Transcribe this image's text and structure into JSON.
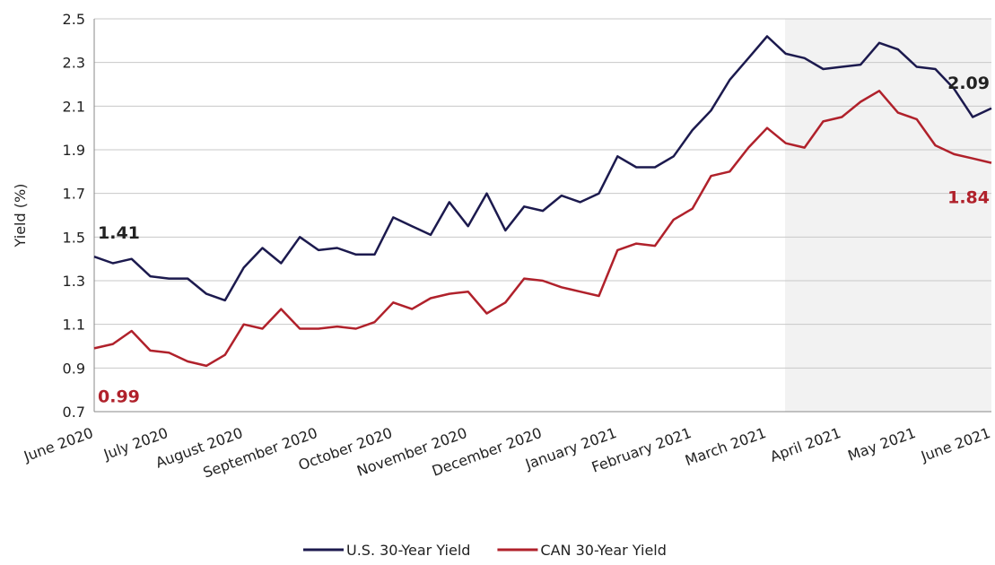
{
  "chart_data": {
    "type": "line",
    "y_label": "Yield (%)",
    "categories": [
      "June 2020",
      null,
      null,
      null,
      "July 2020",
      null,
      null,
      null,
      "August 2020",
      null,
      null,
      null,
      "September 2020",
      null,
      null,
      null,
      "October 2020",
      null,
      null,
      null,
      "November 2020",
      null,
      null,
      null,
      "December 2020",
      null,
      null,
      null,
      "January 2021",
      null,
      null,
      null,
      "February 2021",
      null,
      null,
      null,
      "March 2021",
      null,
      null,
      null,
      "April 2021",
      null,
      null,
      null,
      "May 2021",
      null,
      null,
      null,
      "June 2021"
    ],
    "series": [
      {
        "name": "U.S. 30-Year Yield",
        "color": "#1c1a4e",
        "values": [
          1.41,
          1.38,
          1.4,
          1.32,
          1.31,
          1.31,
          1.24,
          1.21,
          1.36,
          1.45,
          1.38,
          1.5,
          1.44,
          1.45,
          1.42,
          1.42,
          1.59,
          1.55,
          1.51,
          1.66,
          1.55,
          1.7,
          1.53,
          1.64,
          1.62,
          1.69,
          1.66,
          1.7,
          1.87,
          1.82,
          1.82,
          1.87,
          1.99,
          2.08,
          2.22,
          2.32,
          2.42,
          2.34,
          2.32,
          2.27,
          2.28,
          2.29,
          2.39,
          2.36,
          2.28,
          2.27,
          2.18,
          2.05,
          2.09
        ],
        "value_labels": [
          "1.41",
          null,
          null,
          null,
          null,
          null,
          null,
          null,
          null,
          null,
          null,
          null,
          null,
          null,
          null,
          null,
          null,
          null,
          null,
          null,
          null,
          null,
          null,
          null,
          null,
          null,
          null,
          null,
          null,
          null,
          null,
          null,
          null,
          null,
          null,
          null,
          null,
          null,
          null,
          null,
          null,
          null,
          null,
          null,
          null,
          null,
          null,
          null,
          "2.09"
        ],
        "label_color": "#222222"
      },
      {
        "name": "CAN 30-Year Yield",
        "color": "#b0212b",
        "values": [
          0.99,
          1.01,
          1.07,
          0.98,
          0.97,
          0.93,
          0.91,
          0.96,
          1.1,
          1.08,
          1.17,
          1.08,
          1.08,
          1.09,
          1.08,
          1.11,
          1.2,
          1.17,
          1.22,
          1.24,
          1.25,
          1.15,
          1.2,
          1.31,
          1.3,
          1.27,
          1.25,
          1.23,
          1.44,
          1.47,
          1.46,
          1.58,
          1.63,
          1.78,
          1.8,
          1.91,
          2.0,
          1.93,
          1.91,
          2.03,
          2.05,
          2.12,
          2.17,
          2.07,
          2.04,
          1.92,
          1.88,
          1.86,
          1.84
        ],
        "value_labels": [
          "0.99",
          null,
          null,
          null,
          null,
          null,
          null,
          null,
          null,
          null,
          null,
          null,
          null,
          null,
          null,
          null,
          null,
          null,
          null,
          null,
          null,
          null,
          null,
          null,
          null,
          null,
          null,
          null,
          null,
          null,
          null,
          null,
          null,
          null,
          null,
          null,
          null,
          null,
          null,
          null,
          null,
          null,
          null,
          null,
          null,
          null,
          null,
          null,
          "1.84"
        ],
        "label_color": "#b0212b"
      }
    ],
    "ylim": [
      0.7,
      2.5
    ],
    "yticks": [
      0.7,
      0.9,
      1.1,
      1.3,
      1.5,
      1.7,
      1.9,
      2.1,
      2.3,
      2.5
    ],
    "grid": true,
    "legend": "bottom"
  }
}
